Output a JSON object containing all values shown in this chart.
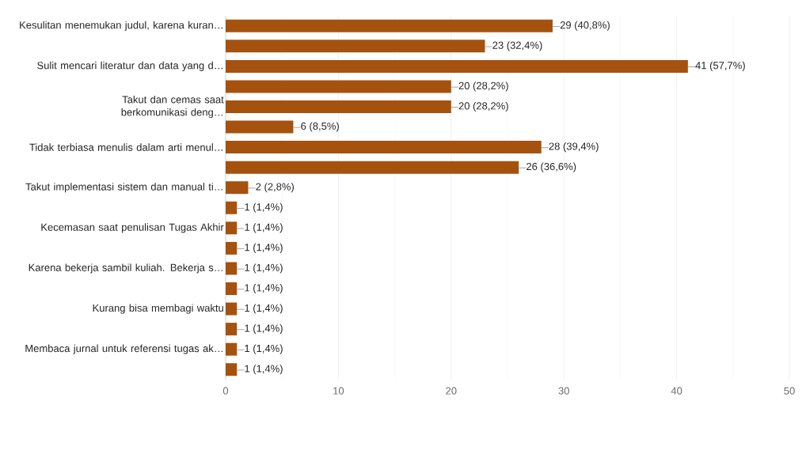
{
  "chart_data": {
    "type": "bar",
    "orientation": "horizontal",
    "categories": [
      "Kesulitan menemukan judul, karena kuran…",
      null,
      "Sulit mencari literatur dan data yang d…",
      null,
      "Takut dan cemas saat berkomunikasi deng…",
      null,
      "Tidak terbiasa menulis dalam arti menul…",
      null,
      "Takut implementasi sistem dan manual ti…",
      null,
      "Kecemasan saat penulisan Tugas Akhir",
      null,
      "Karena bekerja sambil kuliah. Bekerja s…",
      null,
      "Kurang bisa membagi waktu",
      null,
      "Membaca jurnal untuk referensi tugas ak…",
      null
    ],
    "values": [
      29,
      23,
      41,
      20,
      20,
      6,
      28,
      26,
      2,
      1,
      1,
      1,
      1,
      1,
      1,
      1,
      1,
      1
    ],
    "value_labels": [
      "29 (40,8%)",
      "23 (32,4%)",
      "41 (57,7%)",
      "20 (28,2%)",
      "20 (28,2%)",
      "6 (8,5%)",
      "28 (39,4%)",
      "26 (36,6%)",
      "2 (2,8%)",
      "1 (1,4%)",
      "1 (1,4%)",
      "1 (1,4%)",
      "1 (1,4%)",
      "1 (1,4%)",
      "1 (1,4%)",
      "1 (1,4%)",
      "1 (1,4%)",
      "1 (1,4%)"
    ],
    "color": "#a5520f",
    "xlim": [
      0,
      50
    ],
    "xticks": [
      0,
      10,
      20,
      30,
      40,
      50
    ],
    "grid": "x"
  }
}
